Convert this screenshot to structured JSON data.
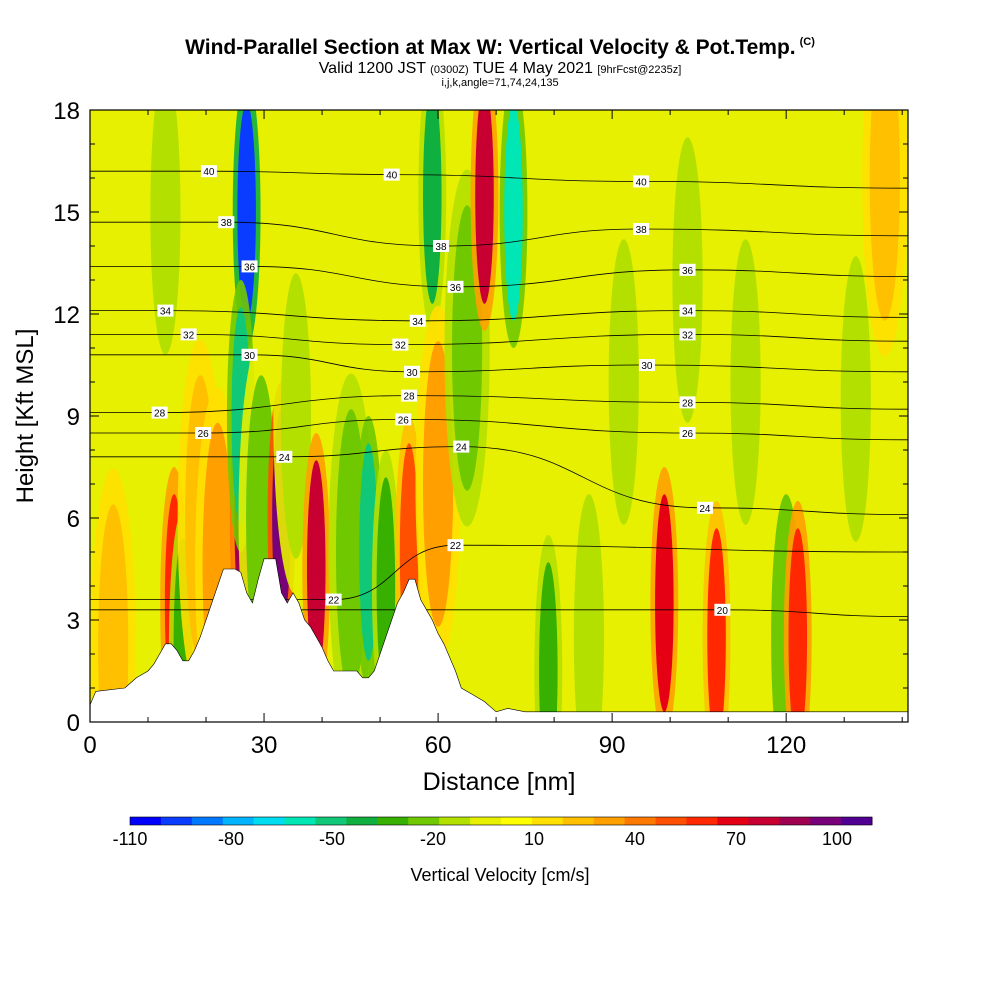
{
  "header": {
    "title": "Wind-Parallel Section at Max W: Vertical Velocity & Pot.Temp.",
    "title_mark": "(C)",
    "valid_a": "Valid 1200 JST",
    "valid_b": "(0300Z)",
    "valid_c": "TUE 4 May 2021",
    "valid_d": "[9hrFcst@2235z]",
    "indices": "i,j,k,angle=71,74,24,135"
  },
  "chart_data": {
    "type": "heatmap",
    "title": "Wind-Parallel Section at Max W: Vertical Velocity & Pot.Temp.",
    "xlabel": "Distance [nm]",
    "ylabel": "Height [Kft MSL]",
    "xlim": [
      0,
      141
    ],
    "ylim": [
      0,
      18
    ],
    "x_ticks": [
      0,
      30,
      60,
      90,
      120
    ],
    "y_ticks": [
      0,
      3,
      6,
      9,
      12,
      15,
      18
    ],
    "colorbar": {
      "label": "Vertical Velocity [cm/s]",
      "tick_labels": [
        -110,
        -80,
        -50,
        -20,
        10,
        40,
        70,
        100
      ],
      "colors": [
        "#0000ff",
        "#0a3cff",
        "#0078ff",
        "#00b4ff",
        "#00dcf0",
        "#00e6b4",
        "#10c878",
        "#10b040",
        "#38b000",
        "#70c800",
        "#b4e000",
        "#e6f000",
        "#ffff00",
        "#ffe000",
        "#ffc000",
        "#ffa000",
        "#ff7800",
        "#ff5000",
        "#ff2800",
        "#e60014",
        "#c80032",
        "#a00050",
        "#780078",
        "#500090"
      ]
    },
    "vertical_velocity_cells": [
      {
        "x": 4,
        "z": 2.2,
        "w": 15
      },
      {
        "x": 14.5,
        "z": 3.5,
        "w": 60
      },
      {
        "x": 16,
        "z": 2.2,
        "w": -45
      },
      {
        "x": 13,
        "z": 15,
        "w": -25
      },
      {
        "x": 19,
        "z": 6,
        "w": 20
      },
      {
        "x": 22,
        "z": 4.6,
        "w": 30
      },
      {
        "x": 26.5,
        "z": 6,
        "w": 90
      },
      {
        "x": 27,
        "z": 15,
        "w": -110
      },
      {
        "x": 26,
        "z": 9,
        "w": -60
      },
      {
        "x": 29.5,
        "z": 6,
        "w": -30
      },
      {
        "x": 33,
        "z": 6,
        "w": 100
      },
      {
        "x": 35.5,
        "z": 9,
        "w": -20
      },
      {
        "x": 39,
        "z": 4.5,
        "w": 75
      },
      {
        "x": 45,
        "z": 5,
        "w": -35
      },
      {
        "x": 48,
        "z": 5,
        "w": -60
      },
      {
        "x": 51,
        "z": 4,
        "w": -40
      },
      {
        "x": 55,
        "z": 5,
        "w": 50
      },
      {
        "x": 59,
        "z": 15.5,
        "w": -50
      },
      {
        "x": 60,
        "z": 7,
        "w": 25
      },
      {
        "x": 65,
        "z": 11,
        "w": -35
      },
      {
        "x": 68,
        "z": 15.5,
        "w": 75
      },
      {
        "x": 73,
        "z": 15,
        "w": -70
      },
      {
        "x": 79,
        "z": 1.5,
        "w": -40
      },
      {
        "x": 86,
        "z": 2.5,
        "w": -20
      },
      {
        "x": 92,
        "z": 10,
        "w": -20
      },
      {
        "x": 99,
        "z": 3.5,
        "w": 70
      },
      {
        "x": 103,
        "z": 13,
        "w": -25
      },
      {
        "x": 108,
        "z": 2.5,
        "w": 55
      },
      {
        "x": 113,
        "z": 10,
        "w": -20
      },
      {
        "x": 120,
        "z": 2.5,
        "w": -30
      },
      {
        "x": 122,
        "z": 2.5,
        "w": 60
      },
      {
        "x": 132,
        "z": 9.5,
        "w": -20
      },
      {
        "x": 137,
        "z": 16,
        "w": 15
      }
    ],
    "theta_contours": [
      {
        "label": "20",
        "label_x": 109,
        "label_z": 3.3
      },
      {
        "label": "22",
        "label_x": 42,
        "label_z": 3.6
      },
      {
        "label": "22",
        "label_x": 63,
        "label_z": 5.2
      },
      {
        "label": "24",
        "label_x": 33.5,
        "label_z": 7.8
      },
      {
        "label": "24",
        "label_x": 64,
        "label_z": 8.1
      },
      {
        "label": "24",
        "label_x": 106,
        "label_z": 6.3
      },
      {
        "label": "26",
        "label_x": 19.5,
        "label_z": 8.5
      },
      {
        "label": "26",
        "label_x": 54,
        "label_z": 8.9
      },
      {
        "label": "26",
        "label_x": 103,
        "label_z": 8.5
      },
      {
        "label": "28",
        "label_x": 12,
        "label_z": 9.1
      },
      {
        "label": "28",
        "label_x": 55,
        "label_z": 9.6
      },
      {
        "label": "28",
        "label_x": 103,
        "label_z": 9.4
      },
      {
        "label": "30",
        "label_x": 27.5,
        "label_z": 10.8
      },
      {
        "label": "30",
        "label_x": 55.5,
        "label_z": 10.3
      },
      {
        "label": "30",
        "label_x": 96,
        "label_z": 10.5
      },
      {
        "label": "32",
        "label_x": 17,
        "label_z": 11.4
      },
      {
        "label": "32",
        "label_x": 53.5,
        "label_z": 11.1
      },
      {
        "label": "32",
        "label_x": 103,
        "label_z": 11.4
      },
      {
        "label": "34",
        "label_x": 13,
        "label_z": 12.1
      },
      {
        "label": "34",
        "label_x": 56.5,
        "label_z": 11.8
      },
      {
        "label": "34",
        "label_x": 103,
        "label_z": 12.1
      },
      {
        "label": "36",
        "label_x": 27.5,
        "label_z": 13.4
      },
      {
        "label": "36",
        "label_x": 63,
        "label_z": 12.8
      },
      {
        "label": "36",
        "label_x": 103,
        "label_z": 13.3
      },
      {
        "label": "38",
        "label_x": 23.5,
        "label_z": 14.7
      },
      {
        "label": "38",
        "label_x": 60.5,
        "label_z": 14
      },
      {
        "label": "38",
        "label_x": 95,
        "label_z": 14.5
      },
      {
        "label": "40",
        "label_x": 20.5,
        "label_z": 16.2
      },
      {
        "label": "40",
        "label_x": 52,
        "label_z": 16.1
      },
      {
        "label": "40",
        "label_x": 95,
        "label_z": 15.9
      }
    ],
    "terrain": [
      [
        0,
        0.5
      ],
      [
        1,
        0.9
      ],
      [
        6,
        1
      ],
      [
        8,
        1.3
      ],
      [
        10,
        1.5
      ],
      [
        11,
        1.7
      ],
      [
        12,
        2
      ],
      [
        13,
        2.3
      ],
      [
        14,
        2.3
      ],
      [
        15,
        2.1
      ],
      [
        16,
        1.8
      ],
      [
        17,
        1.8
      ],
      [
        18,
        2.1
      ],
      [
        19,
        2.5
      ],
      [
        20,
        3
      ],
      [
        21,
        3.5
      ],
      [
        22,
        4
      ],
      [
        23,
        4.5
      ],
      [
        25,
        4.5
      ],
      [
        26,
        4.4
      ],
      [
        27,
        3.8
      ],
      [
        28,
        3.5
      ],
      [
        29,
        4.2
      ],
      [
        30,
        4.8
      ],
      [
        32,
        4.8
      ],
      [
        33,
        3.8
      ],
      [
        34,
        3.5
      ],
      [
        35,
        3.8
      ],
      [
        36,
        3.5
      ],
      [
        37,
        3
      ],
      [
        38,
        2.8
      ],
      [
        39,
        2.5
      ],
      [
        40,
        2.2
      ],
      [
        41,
        1.8
      ],
      [
        42,
        1.5
      ],
      [
        43,
        1.5
      ],
      [
        44,
        1.5
      ],
      [
        45,
        1.5
      ],
      [
        46,
        1.5
      ],
      [
        47,
        1.3
      ],
      [
        48,
        1.3
      ],
      [
        49,
        1.5
      ],
      [
        50,
        2
      ],
      [
        51,
        2.5
      ],
      [
        52,
        3
      ],
      [
        53,
        3.5
      ],
      [
        54,
        3.8
      ],
      [
        55,
        4.2
      ],
      [
        56,
        4.2
      ],
      [
        57,
        3.6
      ],
      [
        58,
        3.3
      ],
      [
        59,
        3
      ],
      [
        60,
        2.6
      ],
      [
        61,
        2.3
      ],
      [
        62,
        1.9
      ],
      [
        63,
        1.5
      ],
      [
        64,
        1
      ],
      [
        66,
        0.8
      ],
      [
        68,
        0.6
      ],
      [
        70,
        0.3
      ],
      [
        72,
        0.4
      ],
      [
        75,
        0.3
      ],
      [
        80,
        0.3
      ],
      [
        100,
        0.3
      ],
      [
        110,
        0.3
      ],
      [
        125,
        0.3
      ],
      [
        141,
        0.3
      ]
    ]
  }
}
